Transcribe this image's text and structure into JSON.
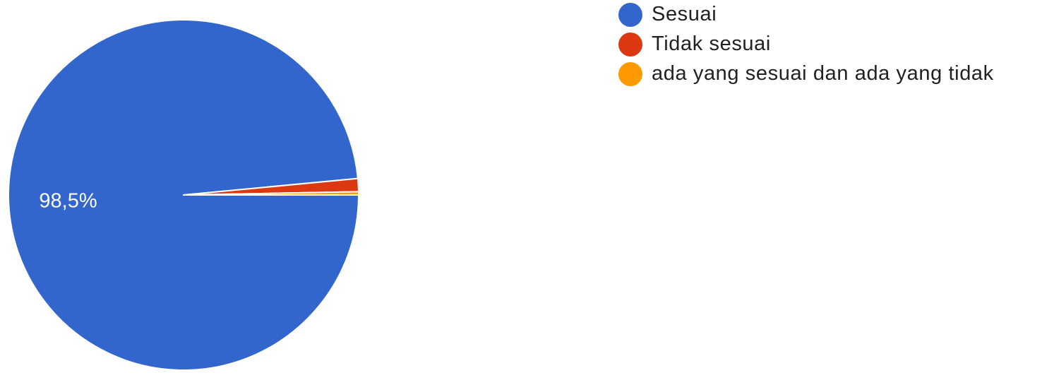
{
  "chart_data": {
    "type": "pie",
    "slices": [
      {
        "label": "Sesuai",
        "value": 98.5,
        "color": "#3366cc",
        "display_label": "98,5%"
      },
      {
        "label": "Tidak sesuai",
        "value": 1.2,
        "color": "#dc3912",
        "display_label": ""
      },
      {
        "label": "ada yang sesuai dan ada yang tidak",
        "value": 0.3,
        "color": "#ff9900",
        "display_label": ""
      }
    ],
    "legend_position": "right"
  },
  "legend": {
    "items": [
      {
        "label": "Sesuai",
        "color": "#3366cc"
      },
      {
        "label": "Tidak sesuai",
        "color": "#dc3912"
      },
      {
        "label": "ada yang sesuai dan ada yang tidak",
        "color": "#ff9900"
      }
    ]
  }
}
